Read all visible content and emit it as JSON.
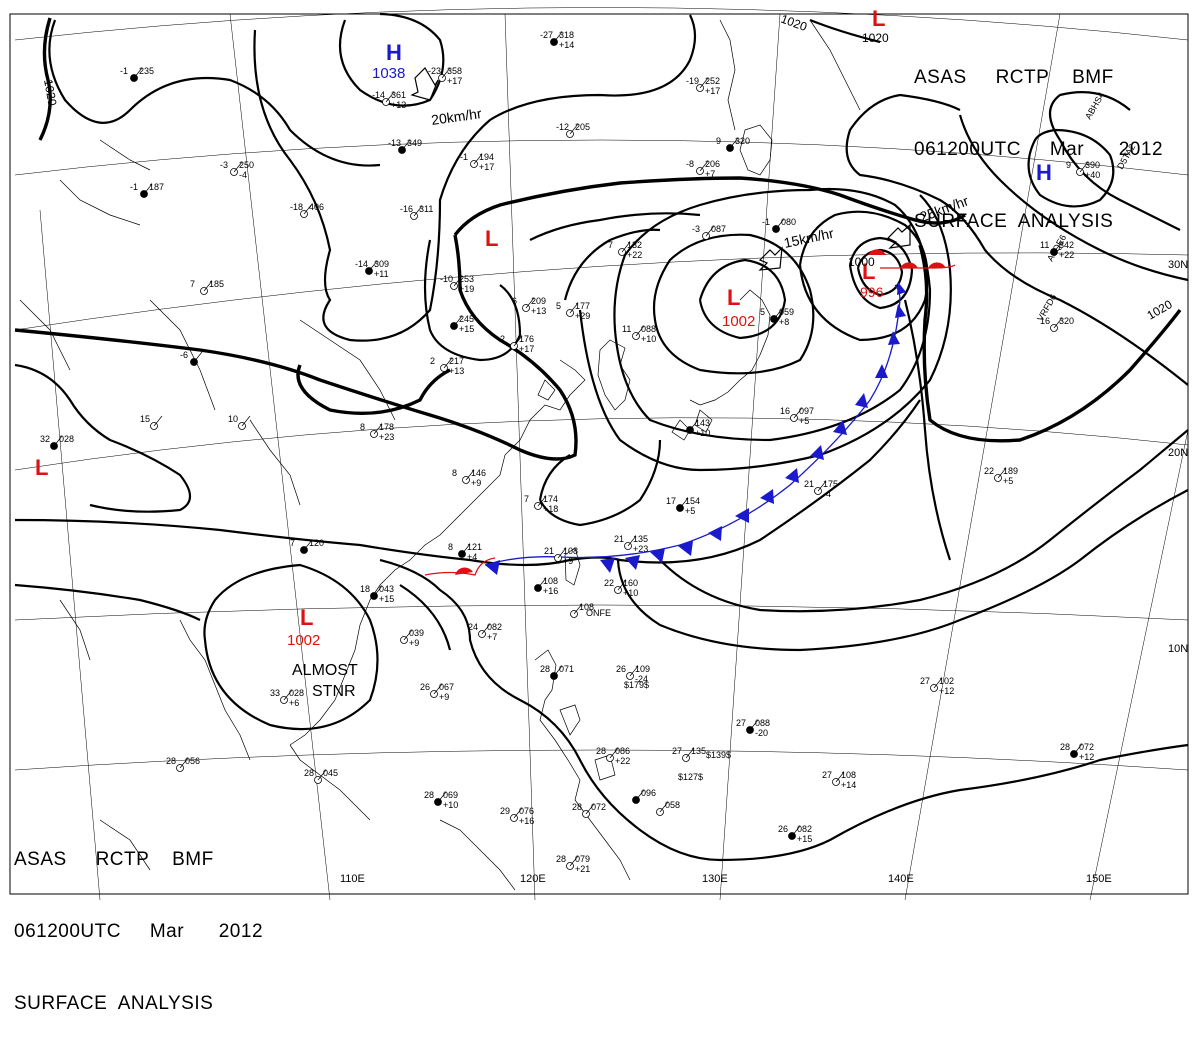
{
  "header": {
    "line1": "ASAS     RCTP    BMF",
    "line2": "061200UTC     Mar      2012",
    "line3": "SURFACE  ANALYSIS"
  },
  "lon_labels": [
    "110E",
    "120E",
    "130E",
    "140E",
    "150E"
  ],
  "lat_labels": [
    "30N",
    "20N",
    "10N"
  ],
  "pressure_centers": [
    {
      "type": "H",
      "value": "1038",
      "color": "#1a1acc"
    },
    {
      "type": "H",
      "value": "",
      "color": "#1a1acc"
    },
    {
      "type": "L",
      "value": "1002",
      "color": "#dd1111"
    },
    {
      "type": "L",
      "value": "996",
      "color": "#dd1111"
    },
    {
      "type": "L",
      "value": "",
      "color": "#dd1111"
    },
    {
      "type": "L",
      "value": "",
      "color": "#dd1111"
    },
    {
      "type": "L",
      "value": "",
      "color": "#dd1111"
    },
    {
      "type": "L",
      "value": "1002",
      "color": "#dd1111"
    }
  ],
  "isobar_labels": [
    "1020",
    "1020",
    "1020",
    "1000"
  ],
  "motion_labels": [
    "20km/hr",
    "15km/hr",
    "25km/hr"
  ],
  "annotations": {
    "almost": "ALMOST",
    "stnr": "STNR"
  },
  "colors": {
    "cold_front": "#1a1acc",
    "warm_front": "#dd1111",
    "high": "#1a1acc",
    "low": "#dd1111"
  },
  "stations": [
    {
      "t": "-1",
      "p": "235",
      "ch": ""
    },
    {
      "t": "-14",
      "p": "361",
      "ch": "+13"
    },
    {
      "t": "-23",
      "p": "358",
      "ch": "+17"
    },
    {
      "t": "-27",
      "p": "318",
      "ch": "+14"
    },
    {
      "t": "-19",
      "p": "252",
      "ch": "+17"
    },
    {
      "t": "-12",
      "p": "205",
      "ch": ""
    },
    {
      "t": "-13",
      "p": "349",
      "ch": ""
    },
    {
      "t": "-1",
      "p": "194",
      "ch": "+17"
    },
    {
      "t": "-3",
      "p": "250",
      "ch": "-4"
    },
    {
      "t": "-1",
      "p": "187",
      "ch": ""
    },
    {
      "t": "-18",
      "p": "406",
      "ch": ""
    },
    {
      "t": "-16",
      "p": "311",
      "ch": ""
    },
    {
      "t": "-14",
      "p": "309",
      "ch": "+11"
    },
    {
      "t": "-10",
      "p": "253",
      "ch": "+19"
    },
    {
      "t": "-8",
      "p": "206",
      "ch": "+7"
    },
    {
      "t": "9",
      "p": "320",
      "ch": ""
    },
    {
      "t": "7",
      "p": "132",
      "ch": "+22"
    },
    {
      "t": "-3",
      "p": "087",
      "ch": ""
    },
    {
      "t": "-1",
      "p": "080",
      "ch": ""
    },
    {
      "t": "6",
      "p": "209",
      "ch": "+13"
    },
    {
      "t": "5",
      "p": "177",
      "ch": "+29"
    },
    {
      "t": "",
      "p": "245",
      "ch": "+15"
    },
    {
      "t": "2",
      "p": "176",
      "ch": "+17"
    },
    {
      "t": "2",
      "p": "217",
      "ch": "+13"
    },
    {
      "t": "5",
      "p": "059",
      "ch": "+8"
    },
    {
      "t": "11",
      "p": "088",
      "ch": "+10"
    },
    {
      "t": "7",
      "p": "185",
      "ch": ""
    },
    {
      "t": "-6",
      "p": "",
      "ch": ""
    },
    {
      "t": "15",
      "p": "",
      "ch": ""
    },
    {
      "t": "10",
      "p": "",
      "ch": ""
    },
    {
      "t": "32",
      "p": "028",
      "ch": ""
    },
    {
      "t": "8",
      "p": "178",
      "ch": "+23"
    },
    {
      "t": "8",
      "p": "146",
      "ch": "+9"
    },
    {
      "t": "17",
      "p": "154",
      "ch": "+5"
    },
    {
      "t": "7",
      "p": "174",
      "ch": "+18"
    },
    {
      "t": "16",
      "p": "097",
      "ch": "+5"
    },
    {
      "t": "",
      "p": "143",
      "ch": "+10"
    },
    {
      "t": "21",
      "p": "175",
      "ch": "-4"
    },
    {
      "t": "22",
      "p": "189",
      "ch": "+5"
    },
    {
      "t": "11",
      "p": "342",
      "ch": "+22"
    },
    {
      "t": "16",
      "p": "320",
      "ch": ""
    },
    {
      "t": "9",
      "p": "390",
      "ch": "+40"
    },
    {
      "t": "8",
      "p": "121",
      "ch": "+4"
    },
    {
      "t": "21",
      "p": "108",
      "ch": "+9"
    },
    {
      "t": "21",
      "p": "135",
      "ch": "+23"
    },
    {
      "t": "",
      "p": "108",
      "ch": "+16"
    },
    {
      "t": "",
      "p": "108",
      "ch": ""
    },
    {
      "t": "22",
      "p": "160",
      "ch": "+10"
    },
    {
      "t": "18",
      "p": "043",
      "ch": "+15"
    },
    {
      "t": "",
      "p": "039",
      "ch": "+9"
    },
    {
      "t": "24",
      "p": "082",
      "ch": "+7"
    },
    {
      "t": "7",
      "p": "120",
      "ch": ""
    },
    {
      "t": "33",
      "p": "028",
      "ch": "+6"
    },
    {
      "t": "26",
      "p": "067",
      "ch": "+9"
    },
    {
      "t": "28",
      "p": "071",
      "ch": ""
    },
    {
      "t": "26",
      "p": "109",
      "ch": "-24"
    },
    {
      "t": "27",
      "p": "102",
      "ch": "+12"
    },
    {
      "t": "27",
      "p": "088",
      "ch": "-20"
    },
    {
      "t": "27",
      "p": "135",
      "ch": ""
    },
    {
      "t": "28",
      "p": "086",
      "ch": "+22"
    },
    {
      "t": "28",
      "p": "072",
      "ch": "+12"
    },
    {
      "t": "28",
      "p": "056",
      "ch": ""
    },
    {
      "t": "28",
      "p": "045",
      "ch": ""
    },
    {
      "t": "28",
      "p": "069",
      "ch": "+10"
    },
    {
      "t": "29",
      "p": "076",
      "ch": "+16"
    },
    {
      "t": "28",
      "p": "072",
      "ch": ""
    },
    {
      "t": "",
      "p": "096",
      "ch": ""
    },
    {
      "t": "",
      "p": "058",
      "ch": ""
    },
    {
      "t": "27",
      "p": "108",
      "ch": "+14"
    },
    {
      "t": "26",
      "p": "082",
      "ch": "+15"
    },
    {
      "t": "28",
      "p": "079",
      "ch": "+21"
    }
  ],
  "ship_codes": [
    "ABHS4",
    "A8QE6",
    "VRFD6",
    "ONFE",
    "D5TA2"
  ],
  "misc_text": [
    "$179$",
    "$127$",
    "$139$"
  ]
}
